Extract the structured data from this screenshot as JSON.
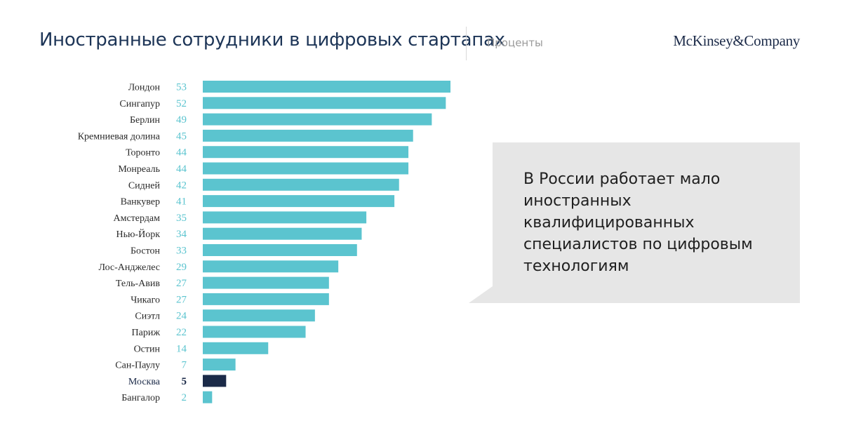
{
  "header": {
    "title": "Иностранные сотрудники в цифровых стартапах",
    "units": "Проценты",
    "logo_text": "McKinsey&Company"
  },
  "callout": {
    "text": "В России работает мало иностранных квалифицированных специалистов по цифровым технологиям"
  },
  "colors": {
    "bar": "#5bc4cf",
    "highlight": "#1b2a48",
    "callout_bg": "#e6e6e6"
  },
  "chart_data": {
    "type": "bar",
    "orientation": "horizontal",
    "categories": [
      "Лондон",
      "Сингапур",
      "Берлин",
      "Кремниевая долина",
      "Торонто",
      "Монреаль",
      "Сидней",
      "Ванкувер",
      "Амстердам",
      "Нью-Йорк",
      "Бостон",
      "Лос-Анджелес",
      "Тель-Авив",
      "Чикаго",
      "Сиэтл",
      "Париж",
      "Остин",
      "Сан-Паулу",
      "Москва",
      "Бангалор"
    ],
    "values": [
      53,
      52,
      49,
      45,
      44,
      44,
      42,
      41,
      35,
      34,
      33,
      29,
      27,
      27,
      24,
      22,
      14,
      7,
      5,
      2
    ],
    "highlight": "Москва",
    "xlim": [
      0,
      53
    ],
    "grid": false,
    "legend": false
  }
}
